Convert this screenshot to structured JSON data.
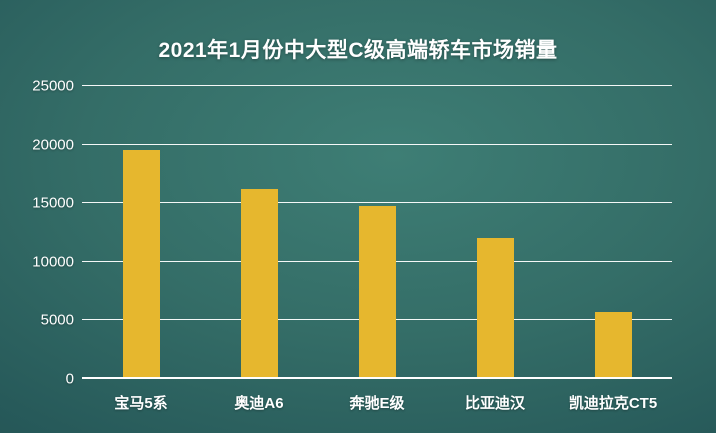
{
  "chart_data": {
    "type": "bar",
    "title": "2021年1月份中大型C级高端轿车市场销量",
    "categories": [
      "宝马5系",
      "奥迪A6",
      "奔驰E级",
      "比亚迪汉",
      "凯迪拉克CT5"
    ],
    "values": [
      19500,
      16200,
      14800,
      12000,
      5700
    ],
    "xlabel": "",
    "ylabel": "",
    "ylim": [
      0,
      25000
    ],
    "yticks": [
      0,
      5000,
      10000,
      15000,
      20000,
      25000
    ],
    "grid": true,
    "legend": false,
    "colors": {
      "bar": "#e6b72e",
      "background_center": "#3e7e75",
      "background_edge": "#1e4a4e",
      "gridline": "#ffffff",
      "text": "#ffffff"
    }
  }
}
